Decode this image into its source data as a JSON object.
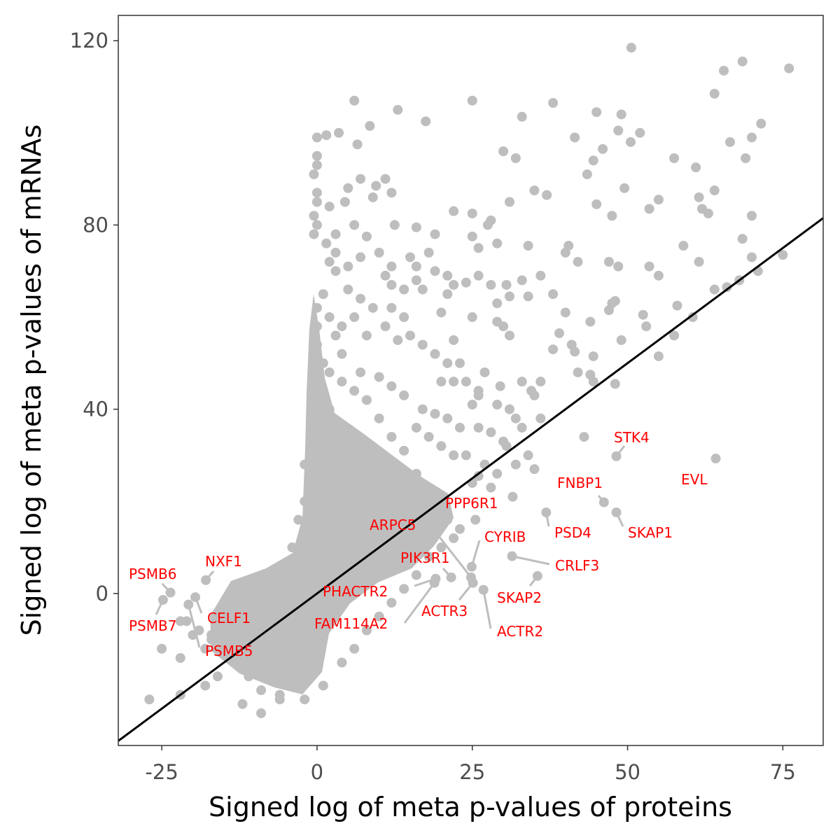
{
  "chart_data": {
    "type": "scatter",
    "title": "",
    "xlabel": "Signed log of meta p-values of proteins",
    "ylabel": "Signed log of meta p-values of mRNAs",
    "xlim": [
      -32,
      81.5
    ],
    "ylim": [
      -33,
      125.5
    ],
    "xticks": [
      -25,
      0,
      25,
      50,
      75
    ],
    "xtick_labels": [
      "-25",
      "0",
      "25",
      "50",
      "75"
    ],
    "yticks": [
      0,
      40,
      80,
      120
    ],
    "ytick_labels": [
      "0",
      "40",
      "80",
      "120"
    ],
    "grid": false,
    "reference_line": {
      "slope": 1,
      "intercept": 0,
      "color": "#000000"
    },
    "point_color": "#bebebe",
    "label_color": "#ff0000",
    "points": [
      [
        50.6,
        118.5
      ],
      [
        68.5,
        115.5
      ],
      [
        65.5,
        113.5
      ],
      [
        76,
        114
      ],
      [
        64,
        108.5
      ],
      [
        6,
        107
      ],
      [
        25,
        107
      ],
      [
        13,
        105
      ],
      [
        38,
        106.5
      ],
      [
        45,
        104.5
      ],
      [
        49,
        104
      ],
      [
        33,
        103.5
      ],
      [
        71.5,
        102
      ],
      [
        48.5,
        100.5
      ],
      [
        52,
        100
      ],
      [
        70,
        99
      ],
      [
        66.5,
        98
      ],
      [
        41.5,
        99
      ],
      [
        17.5,
        102.5
      ],
      [
        8.5,
        101.5
      ],
      [
        1.5,
        99.5
      ],
      [
        3.5,
        100
      ],
      [
        6.5,
        97.5
      ],
      [
        30,
        96
      ],
      [
        46,
        96.5
      ],
      [
        50.5,
        98
      ],
      [
        32,
        94.5
      ],
      [
        44.5,
        94
      ],
      [
        57.5,
        94.5
      ],
      [
        69,
        94.5
      ],
      [
        61,
        92.5
      ],
      [
        43.5,
        91
      ],
      [
        7,
        90
      ],
      [
        11,
        90
      ],
      [
        9.5,
        88.5
      ],
      [
        5,
        88
      ],
      [
        12,
        87
      ],
      [
        35,
        87.5
      ],
      [
        37,
        86.5
      ],
      [
        49.5,
        88
      ],
      [
        55,
        85.5
      ],
      [
        61.5,
        86
      ],
      [
        64,
        87.5
      ],
      [
        45,
        84.5
      ],
      [
        53.5,
        83.5
      ],
      [
        62,
        83.5
      ],
      [
        63,
        82.5
      ],
      [
        22,
        83
      ],
      [
        25,
        82.5
      ],
      [
        28,
        81
      ],
      [
        27.5,
        80
      ],
      [
        31,
        85
      ],
      [
        47.5,
        82
      ],
      [
        70,
        82
      ],
      [
        12.5,
        80
      ],
      [
        16,
        79.5
      ],
      [
        19,
        78
      ],
      [
        29,
        76
      ],
      [
        34,
        75.5
      ],
      [
        40.5,
        75.5
      ],
      [
        68.5,
        77
      ],
      [
        59,
        75.5
      ],
      [
        6,
        80
      ],
      [
        3,
        78
      ],
      [
        8,
        77.5
      ],
      [
        25,
        77.5
      ],
      [
        26,
        75
      ],
      [
        40,
        74
      ],
      [
        42,
        72
      ],
      [
        47,
        72
      ],
      [
        61.5,
        72
      ],
      [
        70,
        73
      ],
      [
        75,
        73.5
      ],
      [
        48.5,
        71
      ],
      [
        53.5,
        71
      ],
      [
        71,
        70
      ],
      [
        36,
        69
      ],
      [
        26,
        69
      ],
      [
        21,
        69
      ],
      [
        22,
        67
      ],
      [
        24,
        67.5
      ],
      [
        28,
        67
      ],
      [
        30.5,
        67
      ],
      [
        33,
        68
      ],
      [
        55,
        69
      ],
      [
        68,
        68
      ],
      [
        66,
        66.5
      ],
      [
        64,
        66
      ],
      [
        34,
        64.5
      ],
      [
        38,
        65
      ],
      [
        31,
        64.5
      ],
      [
        29,
        63
      ],
      [
        40,
        61
      ],
      [
        44,
        59
      ],
      [
        47,
        61.5
      ],
      [
        48,
        63.5
      ],
      [
        47.5,
        63
      ],
      [
        52.5,
        60.5
      ],
      [
        58,
        62.5
      ],
      [
        60.5,
        60
      ],
      [
        53,
        58
      ],
      [
        57.5,
        56
      ],
      [
        49,
        55
      ],
      [
        55,
        51.5
      ],
      [
        29,
        59
      ],
      [
        30,
        58
      ],
      [
        31,
        56
      ],
      [
        39,
        56.5
      ],
      [
        41,
        54
      ],
      [
        38,
        53
      ],
      [
        41.5,
        52.5
      ],
      [
        44.5,
        51.5
      ],
      [
        42,
        48
      ],
      [
        44,
        47.5
      ],
      [
        44.5,
        46
      ],
      [
        48,
        45.5
      ],
      [
        36,
        46
      ],
      [
        33,
        46
      ],
      [
        29.5,
        45
      ],
      [
        34.5,
        44
      ],
      [
        35,
        43
      ],
      [
        20,
        46
      ],
      [
        22,
        46
      ],
      [
        24,
        46
      ],
      [
        26,
        44
      ],
      [
        27,
        48
      ],
      [
        26,
        43
      ],
      [
        25,
        41
      ],
      [
        29,
        41
      ],
      [
        31,
        40
      ],
      [
        32,
        38
      ],
      [
        36,
        38
      ],
      [
        33,
        36
      ],
      [
        28,
        35
      ],
      [
        26,
        36
      ],
      [
        30,
        33
      ],
      [
        30.5,
        32
      ],
      [
        34,
        30
      ],
      [
        43,
        34
      ],
      [
        35,
        27
      ],
      [
        32,
        28
      ],
      [
        29,
        26
      ],
      [
        27,
        28
      ],
      [
        26,
        25.5
      ],
      [
        25,
        24
      ],
      [
        28,
        23
      ],
      [
        31.5,
        21
      ],
      [
        18,
        74
      ],
      [
        15,
        73
      ],
      [
        16,
        71
      ],
      [
        12,
        71
      ],
      [
        11,
        69
      ],
      [
        10,
        74
      ],
      [
        7,
        73
      ],
      [
        5,
        71
      ],
      [
        3,
        74
      ],
      [
        2,
        72
      ],
      [
        1.5,
        76
      ],
      [
        9,
        86
      ],
      [
        4.5,
        85
      ],
      [
        2,
        84
      ],
      [
        0,
        85
      ],
      [
        -0.5,
        82
      ],
      [
        -0.5,
        78
      ],
      [
        0,
        80
      ],
      [
        0,
        87
      ],
      [
        -0.5,
        91
      ],
      [
        0,
        93
      ],
      [
        0,
        95
      ],
      [
        0,
        99
      ],
      [
        3,
        70
      ],
      [
        5,
        66
      ],
      [
        7,
        64
      ],
      [
        9,
        62
      ],
      [
        12,
        62
      ],
      [
        14,
        60
      ],
      [
        15,
        56
      ],
      [
        17,
        54
      ],
      [
        19,
        52
      ],
      [
        21,
        50
      ],
      [
        23,
        50
      ],
      [
        22,
        55
      ],
      [
        20,
        61
      ],
      [
        17,
        66
      ],
      [
        14,
        66
      ],
      [
        12,
        67
      ],
      [
        16,
        68
      ],
      [
        19,
        70
      ],
      [
        21,
        65
      ],
      [
        25,
        60
      ],
      [
        11,
        58
      ],
      [
        13,
        55
      ],
      [
        8,
        56
      ],
      [
        6,
        60
      ],
      [
        4,
        58
      ],
      [
        4,
        52
      ],
      [
        7,
        48
      ],
      [
        10,
        47
      ],
      [
        12,
        45
      ],
      [
        14,
        43
      ],
      [
        17,
        40
      ],
      [
        19,
        39
      ],
      [
        21,
        38
      ],
      [
        23,
        36
      ],
      [
        20,
        32
      ],
      [
        22,
        30
      ],
      [
        24,
        30
      ],
      [
        18,
        34
      ],
      [
        16,
        36
      ],
      [
        14,
        31
      ],
      [
        12,
        34
      ],
      [
        10,
        38
      ],
      [
        8,
        42
      ],
      [
        6,
        44
      ],
      [
        4,
        46
      ],
      [
        2,
        48
      ],
      [
        1,
        50
      ],
      [
        0,
        54
      ],
      [
        0,
        58
      ],
      [
        0,
        62
      ],
      [
        1,
        65
      ],
      [
        2,
        60
      ],
      [
        3,
        56
      ],
      [
        1,
        44
      ],
      [
        2,
        40
      ],
      [
        3,
        36
      ],
      [
        5,
        32
      ],
      [
        7,
        30
      ],
      [
        9,
        28
      ],
      [
        11,
        26
      ],
      [
        13,
        24
      ],
      [
        15,
        22
      ],
      [
        17,
        20
      ],
      [
        19,
        18
      ],
      [
        21,
        16
      ],
      [
        23,
        14
      ],
      [
        22,
        12
      ],
      [
        20,
        10
      ],
      [
        18,
        8
      ],
      [
        16,
        26
      ],
      [
        14,
        20
      ],
      [
        12,
        18
      ],
      [
        10,
        20
      ],
      [
        8,
        24
      ],
      [
        6,
        26
      ],
      [
        4,
        28
      ],
      [
        2,
        30
      ],
      [
        -1,
        34
      ],
      [
        -2,
        28
      ],
      [
        -1,
        24
      ],
      [
        -2,
        20
      ],
      [
        -3,
        16
      ],
      [
        -2,
        12
      ],
      [
        -4,
        10
      ],
      [
        -1,
        8
      ],
      [
        -3,
        6
      ],
      [
        -5,
        5
      ],
      [
        -6,
        3
      ],
      [
        -8,
        2
      ],
      [
        -10,
        0
      ],
      [
        -12,
        -1
      ],
      [
        -14,
        -3
      ],
      [
        -15,
        -5
      ],
      [
        -13,
        -7
      ],
      [
        -11,
        -9
      ],
      [
        -9,
        -11
      ],
      [
        -7,
        -13
      ],
      [
        -5,
        -15
      ],
      [
        -3,
        -17
      ],
      [
        -4,
        -20
      ],
      [
        -6,
        -22
      ],
      [
        -9,
        -21
      ],
      [
        -11,
        -18
      ],
      [
        -13,
        -15
      ],
      [
        -15,
        -12
      ],
      [
        -17,
        -10
      ],
      [
        -19,
        -8
      ],
      [
        -21,
        -6
      ],
      [
        -16,
        -18
      ],
      [
        -18,
        -20
      ],
      [
        -22,
        -14
      ],
      [
        -27,
        -23
      ],
      [
        -22,
        -22
      ],
      [
        -9,
        -26
      ],
      [
        -12,
        -24
      ],
      [
        -6,
        -23
      ],
      [
        -2,
        -23
      ],
      [
        1,
        -20
      ],
      [
        4,
        -15
      ],
      [
        6,
        -12
      ],
      [
        8,
        -8
      ],
      [
        10,
        -5
      ],
      [
        12,
        -2
      ],
      [
        14,
        1
      ],
      [
        16,
        4
      ],
      [
        -25,
        -12
      ],
      [
        -18,
        -12
      ],
      [
        -20,
        -9
      ],
      [
        -17,
        -9
      ],
      [
        -14,
        -10
      ],
      [
        -22,
        -6
      ]
    ],
    "labeled_points": [
      {
        "label": "STK4",
        "x": 48.2,
        "y": 29.8
      },
      {
        "label": "EVL",
        "x": 64.2,
        "y": 29.3
      },
      {
        "label": "FNBP1",
        "x": 46.2,
        "y": 19.8
      },
      {
        "label": "SKAP1",
        "x": 48.2,
        "y": 17.6
      },
      {
        "label": "PSD4",
        "x": 36.9,
        "y": 17.6
      },
      {
        "label": "CRLF3",
        "x": 31.4,
        "y": 8.1
      },
      {
        "label": "SKAP2",
        "x": 35.5,
        "y": 3.8
      },
      {
        "label": "ACTR2",
        "x": 26.8,
        "y": 0.8
      },
      {
        "label": "ACTR3",
        "x": 25.1,
        "y": 2.3
      },
      {
        "label": "CYRIB",
        "x": 24.9,
        "y": 5.8
      },
      {
        "label": "PPP6R1",
        "x": 25.5,
        "y": 16.0
      },
      {
        "label": "ARPC5",
        "x": 24.8,
        "y": 3.5
      },
      {
        "label": "PIK3R1",
        "x": 21.6,
        "y": 3.5
      },
      {
        "label": "PHACTR2",
        "x": 19.1,
        "y": 3.2
      },
      {
        "label": "FAM114A2",
        "x": 18.9,
        "y": 2.3
      },
      {
        "label": "PSMB6",
        "x": -23.6,
        "y": 0.2
      },
      {
        "label": "PSMB7",
        "x": -24.8,
        "y": -1.4
      },
      {
        "label": "NXF1",
        "x": -17.9,
        "y": 2.9
      },
      {
        "label": "CELF1",
        "x": -19.6,
        "y": -0.8
      },
      {
        "label": "PSMB5",
        "x": -20.7,
        "y": -2.4
      }
    ]
  }
}
